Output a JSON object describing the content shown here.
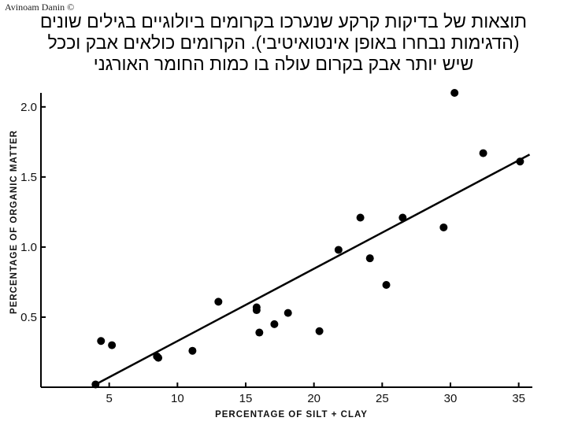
{
  "credit": "Avinoam Danin ©",
  "caption": {
    "lines": [
      "תוצאות של בדיקות קרקע שנערכו בקרומים ביולוגיים בגילים שונים",
      "(הדגימות נבחרו באופן אינטואיטיבי). הקרומים כולאים אבק וככל",
      "שיש יותר אבק בקרום עולה בו כמות החומר האורגני"
    ]
  },
  "chart_data": {
    "type": "scatter",
    "xlabel": "PERCENTAGE OF SILT + CLAY",
    "ylabel": "PERCENTAGE OF ORGANIC MATTER",
    "xlim": [
      0,
      36
    ],
    "ylim": [
      0,
      2.1
    ],
    "x_ticks": [
      5,
      10,
      15,
      20,
      25,
      30,
      35
    ],
    "x_tick_labels": [
      "5",
      "10",
      "15",
      "20",
      "25",
      "30",
      "35"
    ],
    "y_ticks": [
      0.5,
      1.0,
      1.5,
      2.0
    ],
    "y_tick_labels": [
      "0.5",
      "1.0",
      "1.5",
      "2.0"
    ],
    "grid": false,
    "points": [
      {
        "x": 4.0,
        "y": 0.02
      },
      {
        "x": 4.4,
        "y": 0.33
      },
      {
        "x": 5.2,
        "y": 0.3
      },
      {
        "x": 8.5,
        "y": 0.22
      },
      {
        "x": 8.6,
        "y": 0.21
      },
      {
        "x": 11.1,
        "y": 0.26
      },
      {
        "x": 13.0,
        "y": 0.61
      },
      {
        "x": 15.8,
        "y": 0.57
      },
      {
        "x": 15.8,
        "y": 0.55
      },
      {
        "x": 16.0,
        "y": 0.39
      },
      {
        "x": 17.1,
        "y": 0.45
      },
      {
        "x": 18.1,
        "y": 0.53
      },
      {
        "x": 20.4,
        "y": 0.4
      },
      {
        "x": 21.8,
        "y": 0.98
      },
      {
        "x": 23.4,
        "y": 1.21
      },
      {
        "x": 24.1,
        "y": 0.92
      },
      {
        "x": 25.3,
        "y": 0.73
      },
      {
        "x": 26.5,
        "y": 1.21
      },
      {
        "x": 29.5,
        "y": 1.14
      },
      {
        "x": 30.3,
        "y": 2.1
      },
      {
        "x": 32.4,
        "y": 1.67
      },
      {
        "x": 35.1,
        "y": 1.61
      }
    ],
    "trend_line": {
      "x": [
        4.0,
        35.8
      ],
      "y": [
        0.02,
        1.66
      ]
    }
  }
}
